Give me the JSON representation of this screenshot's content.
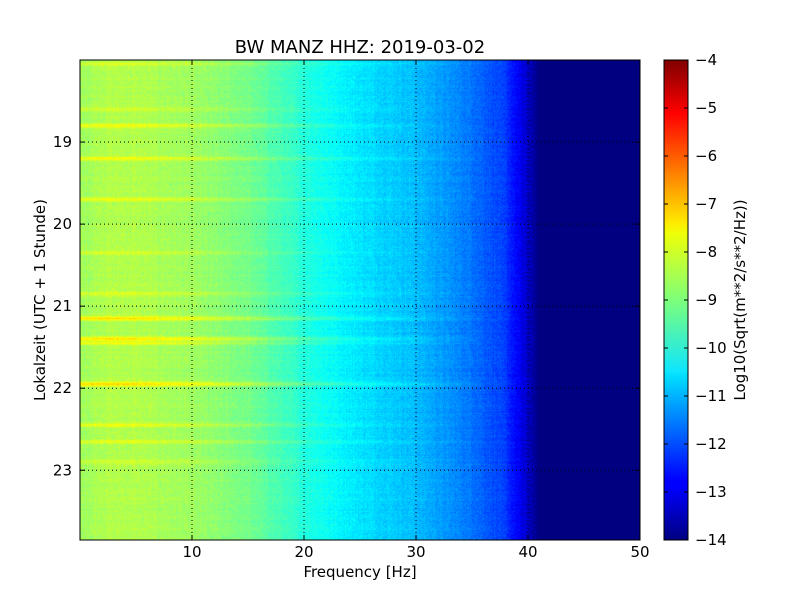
{
  "chart_data": {
    "type": "heatmap",
    "title": "BW MANZ HHZ: 2019-03-02",
    "xlabel": "Frequency [Hz]",
    "ylabel": "Lokalzeit (UTC + 1 Stunde)",
    "xlim": [
      0,
      50
    ],
    "ylim": [
      23.85,
      18.0
    ],
    "x_ticks": [
      10,
      20,
      30,
      40,
      50
    ],
    "y_ticks": [
      19,
      20,
      21,
      22,
      23
    ],
    "grid": true,
    "colormap": "jet",
    "colorbar": {
      "label": "Log10(Sqrt(m**2/s**2/Hz))",
      "range": [
        -14,
        -4
      ],
      "ticks": [
        -4,
        -5,
        -6,
        -7,
        -8,
        -9,
        -10,
        -11,
        -12,
        -13,
        -14
      ]
    },
    "spectrum_profile": {
      "frequency_hz": [
        0,
        2,
        5,
        10,
        15,
        20,
        25,
        30,
        35,
        38,
        40,
        41,
        50
      ],
      "log10_amplitude": [
        -8.7,
        -8.5,
        -8.5,
        -8.7,
        -9.1,
        -9.9,
        -10.5,
        -10.9,
        -11.6,
        -12.2,
        -13.3,
        -14.0,
        -14.0
      ]
    },
    "noise_bursts": [
      {
        "time": 18.05,
        "strength": 0.5
      },
      {
        "time": 18.6,
        "strength": 0.5
      },
      {
        "time": 18.8,
        "strength": 1.0
      },
      {
        "time": 19.2,
        "strength": 0.9
      },
      {
        "time": 19.7,
        "strength": 0.8
      },
      {
        "time": 20.35,
        "strength": 0.6
      },
      {
        "time": 20.85,
        "strength": 0.6
      },
      {
        "time": 21.15,
        "strength": 1.3
      },
      {
        "time": 21.4,
        "strength": 1.4
      },
      {
        "time": 21.45,
        "strength": 0.9
      },
      {
        "time": 21.95,
        "strength": 1.5
      },
      {
        "time": 22.45,
        "strength": 0.9
      },
      {
        "time": 22.65,
        "strength": 0.7
      },
      {
        "time": 22.9,
        "strength": 0.5
      }
    ]
  }
}
